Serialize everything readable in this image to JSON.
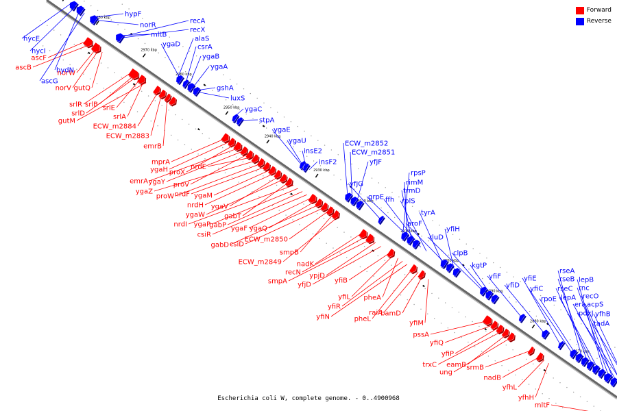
{
  "caption": "Escherichia coli W, complete genome. - 0..4900968",
  "legend": [
    {
      "label": "Forward",
      "color": "#ff0000"
    },
    {
      "label": "Reverse",
      "color": "#0000ff"
    }
  ],
  "colors": {
    "forward": "#ff0000",
    "reverse": "#0000ff",
    "axis": "#666666",
    "tick": "#000000"
  },
  "ticks": [
    "2990 kbp",
    "2980 kbp",
    "2970 kbp",
    "2960 kbp",
    "2950 kbp",
    "2940 kbp",
    "2930 kbp",
    "2920 kbp",
    "2910 kbp",
    "2900 kbp",
    "2890 kbp",
    "2880 kbp",
    "2870 kbp"
  ],
  "forward_labels": [
    "ascF",
    "ascB",
    "norW",
    "norV",
    "gutQ",
    "srlR",
    "srlB",
    "srlD",
    "srlE",
    "srlA",
    "gutM",
    "ECW_m2884",
    "ECW_m2883",
    "emrB",
    "mprA",
    "ygaH",
    "proX",
    "emrA",
    "ygaY",
    "proV",
    "nrdE",
    "ygaZ",
    "proW",
    "nrdF",
    "ygaM",
    "nrdH",
    "ygaV",
    "ygaW",
    "gabT",
    "nrdI",
    "ygaP",
    "gabP",
    "csiR",
    "ygaF",
    "ygaQ",
    "gabD",
    "csiD",
    "ECW_m2850",
    "smpB",
    "ECW_m2849",
    "nadK",
    "recN",
    "smpA",
    "ypjD",
    "yfjD",
    "yfiB",
    "yfiL",
    "pheA",
    "yfiR",
    "yfiN",
    "pheL",
    "raiA",
    "bamD",
    "yfiM",
    "pssA",
    "yfiQ",
    "yfiP",
    "trxC",
    "eamB",
    "ung",
    "srmB",
    "nadB",
    "yfhL",
    "yfhH",
    "mltF"
  ],
  "reverse_labels": [
    "hycE",
    "hycI",
    "hydN",
    "ascG",
    "hypF",
    "norR",
    "mltB",
    "recA",
    "recX",
    "alaS",
    "ygaD",
    "csrA",
    "ygaB",
    "ygaA",
    "gshA",
    "luxS",
    "ygaC",
    "stpA",
    "ygaE",
    "ygaU",
    "insE2",
    "insF2",
    "ECW_m2852",
    "ECW_m2851",
    "yfjF",
    "yfjG",
    "rpsP",
    "rimM",
    "trmD",
    "grpE",
    "ffh",
    "rplS",
    "tyrA",
    "aroF",
    "yfiH",
    "rluD",
    "clpB",
    "kgtP",
    "yfiF",
    "yfiD",
    "yfiE",
    "yfiC",
    "rpoE",
    "rseA",
    "rseB",
    "rseC",
    "lepA",
    "lepB",
    "rnc",
    "recO",
    "era",
    "acpS",
    "pdxJ",
    "yfhB",
    "tadA"
  ]
}
